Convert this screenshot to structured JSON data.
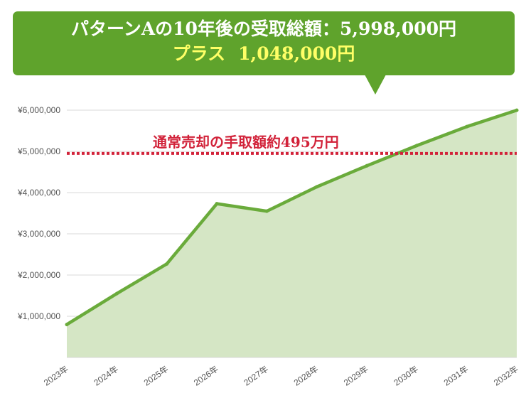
{
  "headline": {
    "line1": "パターンAの10年後の受取総額：5,998,000円",
    "line2_prefix": "プラス",
    "line2_amount": "1,048,000円"
  },
  "colors": {
    "callout_bg": "#5fa32c",
    "headline_text": "#ffffff",
    "highlight_text": "#ffff66",
    "line": "#6aab3b",
    "area": "#d5e6c5",
    "reference": "#d2233a",
    "grid": "#d9d9d9"
  },
  "chart_data": {
    "type": "area",
    "title": "パターンAの10年後の受取総額：5,998,000円",
    "categories": [
      "2023年",
      "2024年",
      "2025年",
      "2026年",
      "2027年",
      "2028年",
      "2029年",
      "2030年",
      "2031年",
      "2032年"
    ],
    "series": [
      {
        "name": "パターンA",
        "values": [
          800000,
          1550000,
          2270000,
          3730000,
          3550000,
          4140000,
          4650000,
          5140000,
          5600000,
          5998000
        ]
      }
    ],
    "yticks": [
      1000000,
      2000000,
      3000000,
      4000000,
      5000000,
      6000000
    ],
    "ytick_labels": [
      "¥1,000,000",
      "¥2,000,000",
      "¥3,000,000",
      "¥4,000,000",
      "¥5,000,000",
      "¥6,000,000"
    ],
    "ylim": [
      0,
      6000000
    ],
    "grid": true,
    "xlabel": "",
    "ylabel": "",
    "reference_line": {
      "value": 4950000,
      "label": "通常売却の手取額約495万円",
      "style": "dashed"
    }
  }
}
